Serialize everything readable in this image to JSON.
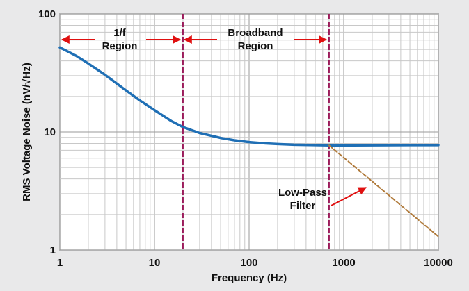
{
  "chart_data": {
    "type": "line",
    "xlabel": "Frequency (Hz)",
    "ylabel": "RMS Voltage Noise (nV/√Hz)",
    "x_scale": "log",
    "y_scale": "log",
    "xlim": [
      1,
      10000
    ],
    "ylim": [
      1,
      100
    ],
    "x_ticks": [
      "1",
      "10",
      "100",
      "1000",
      "10000"
    ],
    "y_ticks": [
      "1",
      "10",
      "100"
    ],
    "grid": true,
    "colors": {
      "noise_curve": "#1f6fb5",
      "low_pass": "#b07a3a",
      "markers": "#9b1b5a",
      "arrows": "#e01010"
    },
    "series": [
      {
        "x": [
          1,
          1.5,
          2,
          3,
          5,
          7,
          10,
          15,
          20,
          30,
          50,
          70,
          100,
          150,
          200,
          300,
          500,
          700,
          1000,
          2000,
          5000,
          10000
        ],
        "values": [
          52,
          44,
          38,
          30.5,
          22.5,
          18.5,
          15.3,
          12.4,
          11,
          9.8,
          8.9,
          8.5,
          8.2,
          8.0,
          7.9,
          7.8,
          7.75,
          7.7,
          7.7,
          7.72,
          7.75,
          7.75
        ]
      },
      {
        "style": "dashed",
        "x": [
          700,
          10000
        ],
        "values": [
          7.7,
          1.3
        ]
      }
    ],
    "region_boundaries": [
      20,
      700
    ],
    "annotations": {
      "one_f_line1": "1/f",
      "one_f_line2": "Region",
      "broadband_line1": "Broadband",
      "broadband_line2": "Region",
      "lowpass_line1": "Low-Pass",
      "lowpass_line2": "Filter"
    }
  }
}
